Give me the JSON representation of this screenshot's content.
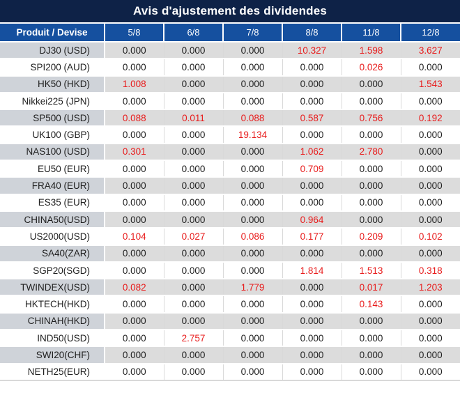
{
  "colors": {
    "title_bar_background": "#0e2247",
    "column_header_background": "#15509f",
    "stripe_label_background": "#cfd3d9",
    "stripe_data_background": "#dcdcdc",
    "highlight_red": "#e81b1b",
    "text_dark": "#202020",
    "grid_line": "#d9d9d9"
  },
  "chart_data": {
    "type": "table",
    "title": "Avis d'ajustement des dividendes",
    "product_header": "Produit / Devise",
    "date_headers": [
      "5/8",
      "6/8",
      "7/8",
      "8/8",
      "11/8",
      "12/8"
    ],
    "rows": [
      {
        "product": "DJ30 (USD)",
        "values": [
          "0.000",
          "0.000",
          "0.000",
          "10.327",
          "1.598",
          "3.627"
        ],
        "red": [
          false,
          false,
          false,
          true,
          true,
          true
        ]
      },
      {
        "product": "SPI200 (AUD)",
        "values": [
          "0.000",
          "0.000",
          "0.000",
          "0.000",
          "0.026",
          "0.000"
        ],
        "red": [
          false,
          false,
          false,
          false,
          true,
          false
        ]
      },
      {
        "product": "HK50 (HKD)",
        "values": [
          "1.008",
          "0.000",
          "0.000",
          "0.000",
          "0.000",
          "1.543"
        ],
        "red": [
          true,
          false,
          false,
          false,
          false,
          true
        ]
      },
      {
        "product": "Nikkei225 (JPN)",
        "values": [
          "0.000",
          "0.000",
          "0.000",
          "0.000",
          "0.000",
          "0.000"
        ],
        "red": [
          false,
          false,
          false,
          false,
          false,
          false
        ]
      },
      {
        "product": "SP500 (USD)",
        "values": [
          "0.088",
          "0.011",
          "0.088",
          "0.587",
          "0.756",
          "0.192"
        ],
        "red": [
          true,
          true,
          true,
          true,
          true,
          true
        ]
      },
      {
        "product": "UK100 (GBP)",
        "values": [
          "0.000",
          "0.000",
          "19.134",
          "0.000",
          "0.000",
          "0.000"
        ],
        "red": [
          false,
          false,
          true,
          false,
          false,
          false
        ]
      },
      {
        "product": "NAS100 (USD)",
        "values": [
          "0.301",
          "0.000",
          "0.000",
          "1.062",
          "2.780",
          "0.000"
        ],
        "red": [
          true,
          false,
          false,
          true,
          true,
          false
        ]
      },
      {
        "product": "EU50 (EUR)",
        "values": [
          "0.000",
          "0.000",
          "0.000",
          "0.709",
          "0.000",
          "0.000"
        ],
        "red": [
          false,
          false,
          false,
          true,
          false,
          false
        ]
      },
      {
        "product": "FRA40 (EUR)",
        "values": [
          "0.000",
          "0.000",
          "0.000",
          "0.000",
          "0.000",
          "0.000"
        ],
        "red": [
          false,
          false,
          false,
          false,
          false,
          false
        ]
      },
      {
        "product": "ES35 (EUR)",
        "values": [
          "0.000",
          "0.000",
          "0.000",
          "0.000",
          "0.000",
          "0.000"
        ],
        "red": [
          false,
          false,
          false,
          false,
          false,
          false
        ]
      },
      {
        "product": "CHINA50(USD)",
        "values": [
          "0.000",
          "0.000",
          "0.000",
          "0.964",
          "0.000",
          "0.000"
        ],
        "red": [
          false,
          false,
          false,
          true,
          false,
          false
        ]
      },
      {
        "product": "US2000(USD)",
        "values": [
          "0.104",
          "0.027",
          "0.086",
          "0.177",
          "0.209",
          "0.102"
        ],
        "red": [
          true,
          true,
          true,
          true,
          true,
          true
        ]
      },
      {
        "product": "SA40(ZAR)",
        "values": [
          "0.000",
          "0.000",
          "0.000",
          "0.000",
          "0.000",
          "0.000"
        ],
        "red": [
          false,
          false,
          false,
          false,
          false,
          false
        ]
      },
      {
        "product": "SGP20(SGD)",
        "values": [
          "0.000",
          "0.000",
          "0.000",
          "1.814",
          "1.513",
          "0.318"
        ],
        "red": [
          false,
          false,
          false,
          true,
          true,
          true
        ]
      },
      {
        "product": "TWINDEX(USD)",
        "values": [
          "0.082",
          "0.000",
          "1.779",
          "0.000",
          "0.017",
          "1.203"
        ],
        "red": [
          true,
          false,
          true,
          false,
          true,
          true
        ]
      },
      {
        "product": "HKTECH(HKD)",
        "values": [
          "0.000",
          "0.000",
          "0.000",
          "0.000",
          "0.143",
          "0.000"
        ],
        "red": [
          false,
          false,
          false,
          false,
          true,
          false
        ]
      },
      {
        "product": "CHINAH(HKD)",
        "values": [
          "0.000",
          "0.000",
          "0.000",
          "0.000",
          "0.000",
          "0.000"
        ],
        "red": [
          false,
          false,
          false,
          false,
          false,
          false
        ]
      },
      {
        "product": "IND50(USD)",
        "values": [
          "0.000",
          "2.757",
          "0.000",
          "0.000",
          "0.000",
          "0.000"
        ],
        "red": [
          false,
          true,
          false,
          false,
          false,
          false
        ]
      },
      {
        "product": "SWI20(CHF)",
        "values": [
          "0.000",
          "0.000",
          "0.000",
          "0.000",
          "0.000",
          "0.000"
        ],
        "red": [
          false,
          false,
          false,
          false,
          false,
          false
        ]
      },
      {
        "product": "NETH25(EUR)",
        "values": [
          "0.000",
          "0.000",
          "0.000",
          "0.000",
          "0.000",
          "0.000"
        ],
        "red": [
          false,
          false,
          false,
          false,
          false,
          false
        ]
      }
    ]
  }
}
